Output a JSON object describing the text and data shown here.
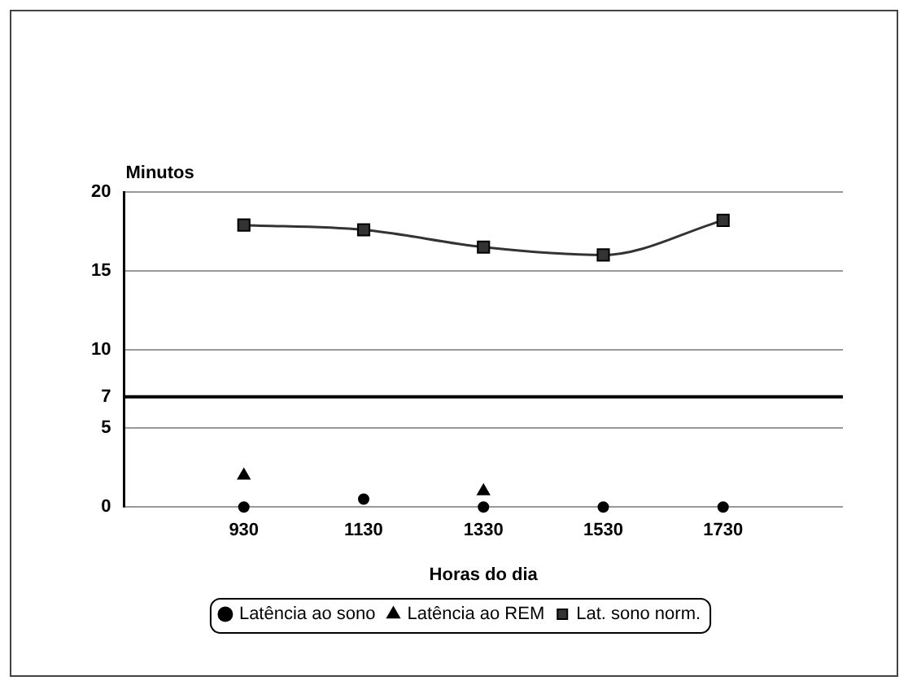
{
  "chart_data": {
    "type": "line",
    "xlabel": "Horas do dia",
    "ylabel": "Minutos",
    "categories": [
      null,
      "930",
      "1130",
      "1330",
      "1530",
      "1730",
      null
    ],
    "series": [
      {
        "name": "Latência ao sono",
        "type": "scatter",
        "marker": "circle",
        "color": "#000000",
        "values": [
          null,
          0,
          0.5,
          0,
          0,
          0,
          null
        ]
      },
      {
        "name": "Latência ao REM",
        "type": "scatter",
        "marker": "triangle",
        "color": "#000000",
        "values": [
          null,
          2,
          null,
          1,
          null,
          null,
          null
        ]
      },
      {
        "name": "Lat. sono norm.",
        "type": "line",
        "marker": "square",
        "color": "#333333",
        "values": [
          null,
          17.9,
          17.6,
          16.5,
          16.0,
          18.2,
          null
        ]
      }
    ],
    "ylim": [
      0,
      20
    ],
    "yticks": [
      0,
      5,
      7,
      10,
      15,
      20
    ],
    "grid": "y",
    "legend": "bottom",
    "ref_lines": [
      {
        "axis": "y",
        "value": 7,
        "color": "#000000"
      }
    ]
  }
}
